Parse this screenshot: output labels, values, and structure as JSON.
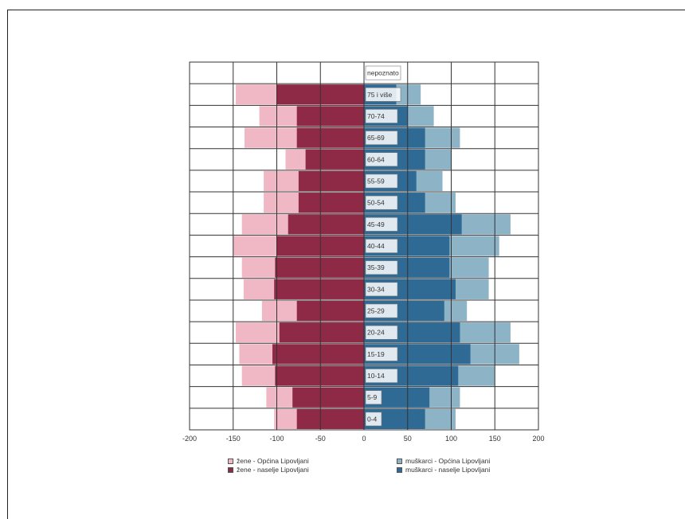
{
  "colors": {
    "female_municipality": "#f0b8c4",
    "female_settlement": "#8e2a45",
    "male_municipality": "#8db3c7",
    "male_settlement": "#2f6a95",
    "grid": "#333333"
  },
  "chart_data": {
    "type": "bar",
    "orientation": "horizontal",
    "subtype": "population-pyramid",
    "title": "",
    "xlabel": "",
    "ylabel": "",
    "xlim": [
      -200,
      200
    ],
    "x_ticks": [
      "-200",
      "-150",
      "-100",
      "-50",
      "0",
      "50",
      "100",
      "150",
      "200"
    ],
    "categories": [
      "0-4",
      "5-9",
      "10-14",
      "15-19",
      "20-24",
      "25-29",
      "30-34",
      "35-39",
      "40-44",
      "45-49",
      "50-54",
      "55-59",
      "60-64",
      "65-69",
      "70-74",
      "75 i više",
      "nepoznato"
    ],
    "series": [
      {
        "name": "žene - Općina Lipovljani",
        "side": "left",
        "values": [
          -103,
          -112,
          -140,
          -143,
          -147,
          -117,
          -138,
          -140,
          -150,
          -140,
          -115,
          -115,
          -90,
          -137,
          -120,
          -147,
          0
        ]
      },
      {
        "name": "žene - naselje Lipovljani",
        "side": "left",
        "values": [
          -77,
          -82,
          -102,
          -105,
          -97,
          -77,
          -103,
          -102,
          -100,
          -87,
          -75,
          -75,
          -67,
          -77,
          -77,
          -100,
          0
        ]
      },
      {
        "name": "muškarci - Općina Lipovljani",
        "side": "right",
        "values": [
          105,
          110,
          150,
          178,
          168,
          118,
          143,
          143,
          155,
          168,
          105,
          90,
          100,
          110,
          80,
          65,
          0
        ]
      },
      {
        "name": "muškarci - naselje Lipovljani",
        "side": "right",
        "values": [
          70,
          75,
          108,
          122,
          110,
          92,
          105,
          98,
          98,
          112,
          70,
          60,
          70,
          70,
          50,
          37,
          0
        ]
      }
    ],
    "grid": true,
    "legend_position": "bottom"
  },
  "legend": {
    "items": [
      "žene - Općina Lipovljani",
      "žene - naselje Lipovljani",
      "muškarci - Općina Lipovljani",
      "muškarci - naselje Lipovljani"
    ]
  }
}
